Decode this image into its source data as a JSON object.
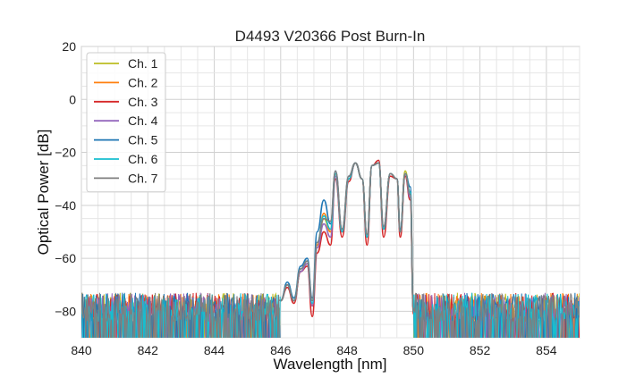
{
  "chart_data": {
    "type": "line",
    "title": "D4493 V20366 Post Burn-In",
    "xlabel": "Wavelength [nm]",
    "ylabel": "Optical Power [dB]",
    "xlim": [
      840,
      855
    ],
    "ylim": [
      -90,
      20
    ],
    "xticks": [
      "840",
      "842",
      "844",
      "846",
      "848",
      "850",
      "852",
      "854"
    ],
    "yticks": [
      "20",
      "0",
      "−20",
      "−40",
      "−60",
      "−80"
    ],
    "xtick_values": [
      840,
      842,
      844,
      846,
      848,
      850,
      852,
      854
    ],
    "ytick_values": [
      20,
      0,
      -20,
      -40,
      -60,
      -80
    ],
    "grid": true,
    "legend_position": "top-left",
    "noise_floor_range": [
      -90,
      -73
    ],
    "series": [
      {
        "name": "Ch. 1",
        "color": "#bcbd22",
        "points": [
          [
            846.0,
            -76
          ],
          [
            846.2,
            -70
          ],
          [
            846.4,
            -76
          ],
          [
            846.6,
            -65
          ],
          [
            846.8,
            -62
          ],
          [
            846.95,
            -78
          ],
          [
            847.1,
            -56
          ],
          [
            847.3,
            -45
          ],
          [
            847.5,
            -50
          ],
          [
            847.65,
            -28
          ],
          [
            847.85,
            -50
          ],
          [
            848.05,
            -30
          ],
          [
            848.25,
            -24
          ],
          [
            848.45,
            -30
          ],
          [
            848.6,
            -52
          ],
          [
            848.75,
            -25
          ],
          [
            848.95,
            -24
          ],
          [
            849.1,
            -49
          ],
          [
            849.3,
            -28
          ],
          [
            849.5,
            -30
          ],
          [
            849.6,
            -50
          ],
          [
            849.75,
            -27
          ],
          [
            849.9,
            -36
          ],
          [
            850.0,
            -80
          ]
        ]
      },
      {
        "name": "Ch. 2",
        "color": "#ff7f0e",
        "points": [
          [
            846.0,
            -76
          ],
          [
            846.2,
            -70
          ],
          [
            846.4,
            -76
          ],
          [
            846.6,
            -65
          ],
          [
            846.8,
            -62
          ],
          [
            846.95,
            -78
          ],
          [
            847.1,
            -55
          ],
          [
            847.3,
            -43
          ],
          [
            847.5,
            -50
          ],
          [
            847.65,
            -28
          ],
          [
            847.85,
            -50
          ],
          [
            848.05,
            -30
          ],
          [
            848.25,
            -24
          ],
          [
            848.45,
            -30
          ],
          [
            848.6,
            -52
          ],
          [
            848.75,
            -25
          ],
          [
            848.95,
            -24
          ],
          [
            849.1,
            -49
          ],
          [
            849.3,
            -28
          ],
          [
            849.5,
            -30
          ],
          [
            849.6,
            -50
          ],
          [
            849.75,
            -28
          ],
          [
            849.9,
            -35
          ],
          [
            850.0,
            -80
          ]
        ]
      },
      {
        "name": "Ch. 3",
        "color": "#d62728",
        "points": [
          [
            846.0,
            -76
          ],
          [
            846.2,
            -71
          ],
          [
            846.4,
            -77
          ],
          [
            846.6,
            -65
          ],
          [
            846.8,
            -63
          ],
          [
            846.95,
            -82
          ],
          [
            847.1,
            -58
          ],
          [
            847.3,
            -50
          ],
          [
            847.5,
            -55
          ],
          [
            847.65,
            -30
          ],
          [
            847.85,
            -52
          ],
          [
            848.05,
            -31
          ],
          [
            848.25,
            -24
          ],
          [
            848.45,
            -30
          ],
          [
            848.6,
            -55
          ],
          [
            848.75,
            -25
          ],
          [
            848.95,
            -23
          ],
          [
            849.1,
            -52
          ],
          [
            849.3,
            -29
          ],
          [
            849.5,
            -30
          ],
          [
            849.6,
            -52
          ],
          [
            849.75,
            -29
          ],
          [
            849.9,
            -38
          ],
          [
            850.0,
            -81
          ]
        ]
      },
      {
        "name": "Ch. 4",
        "color": "#9467bd",
        "points": [
          [
            846.0,
            -76
          ],
          [
            846.2,
            -70
          ],
          [
            846.4,
            -76
          ],
          [
            846.6,
            -65
          ],
          [
            846.8,
            -62
          ],
          [
            846.95,
            -78
          ],
          [
            847.1,
            -56
          ],
          [
            847.3,
            -47
          ],
          [
            847.5,
            -52
          ],
          [
            847.65,
            -29
          ],
          [
            847.85,
            -50
          ],
          [
            848.05,
            -30
          ],
          [
            848.25,
            -24
          ],
          [
            848.45,
            -30
          ],
          [
            848.6,
            -52
          ],
          [
            848.75,
            -25
          ],
          [
            848.95,
            -24
          ],
          [
            849.1,
            -49
          ],
          [
            849.3,
            -28
          ],
          [
            849.5,
            -30
          ],
          [
            849.6,
            -50
          ],
          [
            849.75,
            -28
          ],
          [
            849.9,
            -37
          ],
          [
            850.0,
            -80
          ]
        ]
      },
      {
        "name": "Ch. 5",
        "color": "#1f77b4",
        "points": [
          [
            846.0,
            -76
          ],
          [
            846.2,
            -69
          ],
          [
            846.4,
            -75
          ],
          [
            846.6,
            -63
          ],
          [
            846.8,
            -60
          ],
          [
            846.95,
            -75
          ],
          [
            847.1,
            -50
          ],
          [
            847.3,
            -38
          ],
          [
            847.5,
            -47
          ],
          [
            847.65,
            -27
          ],
          [
            847.85,
            -49
          ],
          [
            848.05,
            -29
          ],
          [
            848.25,
            -24
          ],
          [
            848.45,
            -30
          ],
          [
            848.6,
            -51
          ],
          [
            848.75,
            -25
          ],
          [
            848.95,
            -24
          ],
          [
            849.1,
            -48
          ],
          [
            849.3,
            -28
          ],
          [
            849.5,
            -30
          ],
          [
            849.6,
            -49
          ],
          [
            849.75,
            -28
          ],
          [
            849.9,
            -33
          ],
          [
            850.0,
            -80
          ]
        ]
      },
      {
        "name": "Ch. 6",
        "color": "#17becf",
        "points": [
          [
            846.0,
            -76
          ],
          [
            846.2,
            -70
          ],
          [
            846.4,
            -76
          ],
          [
            846.6,
            -64
          ],
          [
            846.8,
            -61
          ],
          [
            846.95,
            -77
          ],
          [
            847.1,
            -54
          ],
          [
            847.3,
            -44
          ],
          [
            847.5,
            -49
          ],
          [
            847.65,
            -28
          ],
          [
            847.85,
            -50
          ],
          [
            848.05,
            -30
          ],
          [
            848.25,
            -24
          ],
          [
            848.45,
            -30
          ],
          [
            848.6,
            -52
          ],
          [
            848.75,
            -25
          ],
          [
            848.95,
            -24
          ],
          [
            849.1,
            -49
          ],
          [
            849.3,
            -28
          ],
          [
            849.5,
            -30
          ],
          [
            849.6,
            -50
          ],
          [
            849.75,
            -28
          ],
          [
            849.9,
            -35
          ],
          [
            850.0,
            -80
          ]
        ]
      },
      {
        "name": "Ch. 7",
        "color": "#7f7f7f",
        "points": [
          [
            846.0,
            -76
          ],
          [
            846.2,
            -70
          ],
          [
            846.4,
            -76
          ],
          [
            846.6,
            -64
          ],
          [
            846.8,
            -61
          ],
          [
            846.95,
            -76
          ],
          [
            847.1,
            -54
          ],
          [
            847.3,
            -45
          ],
          [
            847.5,
            -46
          ],
          [
            847.65,
            -27
          ],
          [
            847.85,
            -49
          ],
          [
            848.05,
            -29
          ],
          [
            848.25,
            -24
          ],
          [
            848.45,
            -30
          ],
          [
            848.6,
            -51
          ],
          [
            848.75,
            -25
          ],
          [
            848.95,
            -24
          ],
          [
            849.1,
            -48
          ],
          [
            849.3,
            -28
          ],
          [
            849.5,
            -30
          ],
          [
            849.6,
            -50
          ],
          [
            849.75,
            -28
          ],
          [
            849.9,
            -36
          ],
          [
            850.0,
            -80
          ]
        ]
      }
    ]
  }
}
